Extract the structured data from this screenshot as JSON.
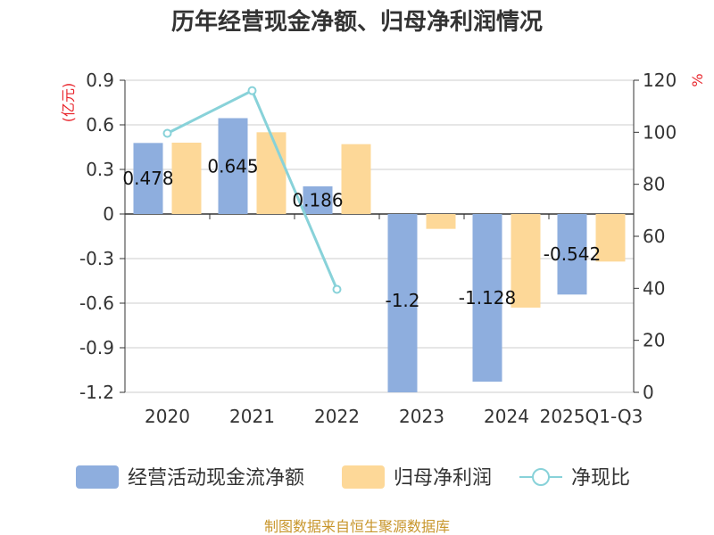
{
  "title": "历年经营现金净额、归母净利润情况",
  "source": "制图数据来自恒生聚源数据库",
  "units": {
    "left": "(亿元)",
    "right": "%"
  },
  "colors": {
    "cash_flow": "#8eaede",
    "net_profit": "#fdd898",
    "ratio": "#88d2d9",
    "grid": "#cccccc",
    "axis": "#333333",
    "unit": "#e8262d",
    "source": "#c8962c"
  },
  "legend": [
    "经营活动现金流净额",
    "归母净利润",
    "净现比"
  ],
  "chart_data": {
    "type": "bar",
    "title": "历年经营现金净额、归母净利润情况",
    "categories": [
      "2020",
      "2021",
      "2022",
      "2023",
      "2024",
      "2025Q1-Q3"
    ],
    "series": [
      {
        "name": "经营活动现金流净额",
        "type": "bar",
        "axis": "left",
        "values": [
          0.478,
          0.645,
          0.186,
          -1.2,
          -1.128,
          -0.542
        ],
        "labels": [
          "0.478",
          "0.645",
          "0.186",
          "-1.2",
          "-1.128",
          "-0.542"
        ]
      },
      {
        "name": "归母净利润",
        "type": "bar",
        "axis": "left",
        "values": [
          0.48,
          0.55,
          0.47,
          -0.1,
          -0.63,
          -0.32
        ]
      },
      {
        "name": "净现比",
        "type": "line",
        "axis": "right",
        "values": [
          99.6,
          116,
          39.6,
          null,
          null,
          null
        ]
      }
    ],
    "left_axis": {
      "min": -1.2,
      "max": 0.9,
      "ticks": [
        "0.9",
        "0.6",
        "0.3",
        "0",
        "-0.3",
        "-0.6",
        "-0.9",
        "-1.2"
      ]
    },
    "right_axis": {
      "min": 0,
      "max": 120,
      "ticks": [
        "120",
        "100",
        "80",
        "60",
        "40",
        "20",
        "0"
      ]
    }
  }
}
